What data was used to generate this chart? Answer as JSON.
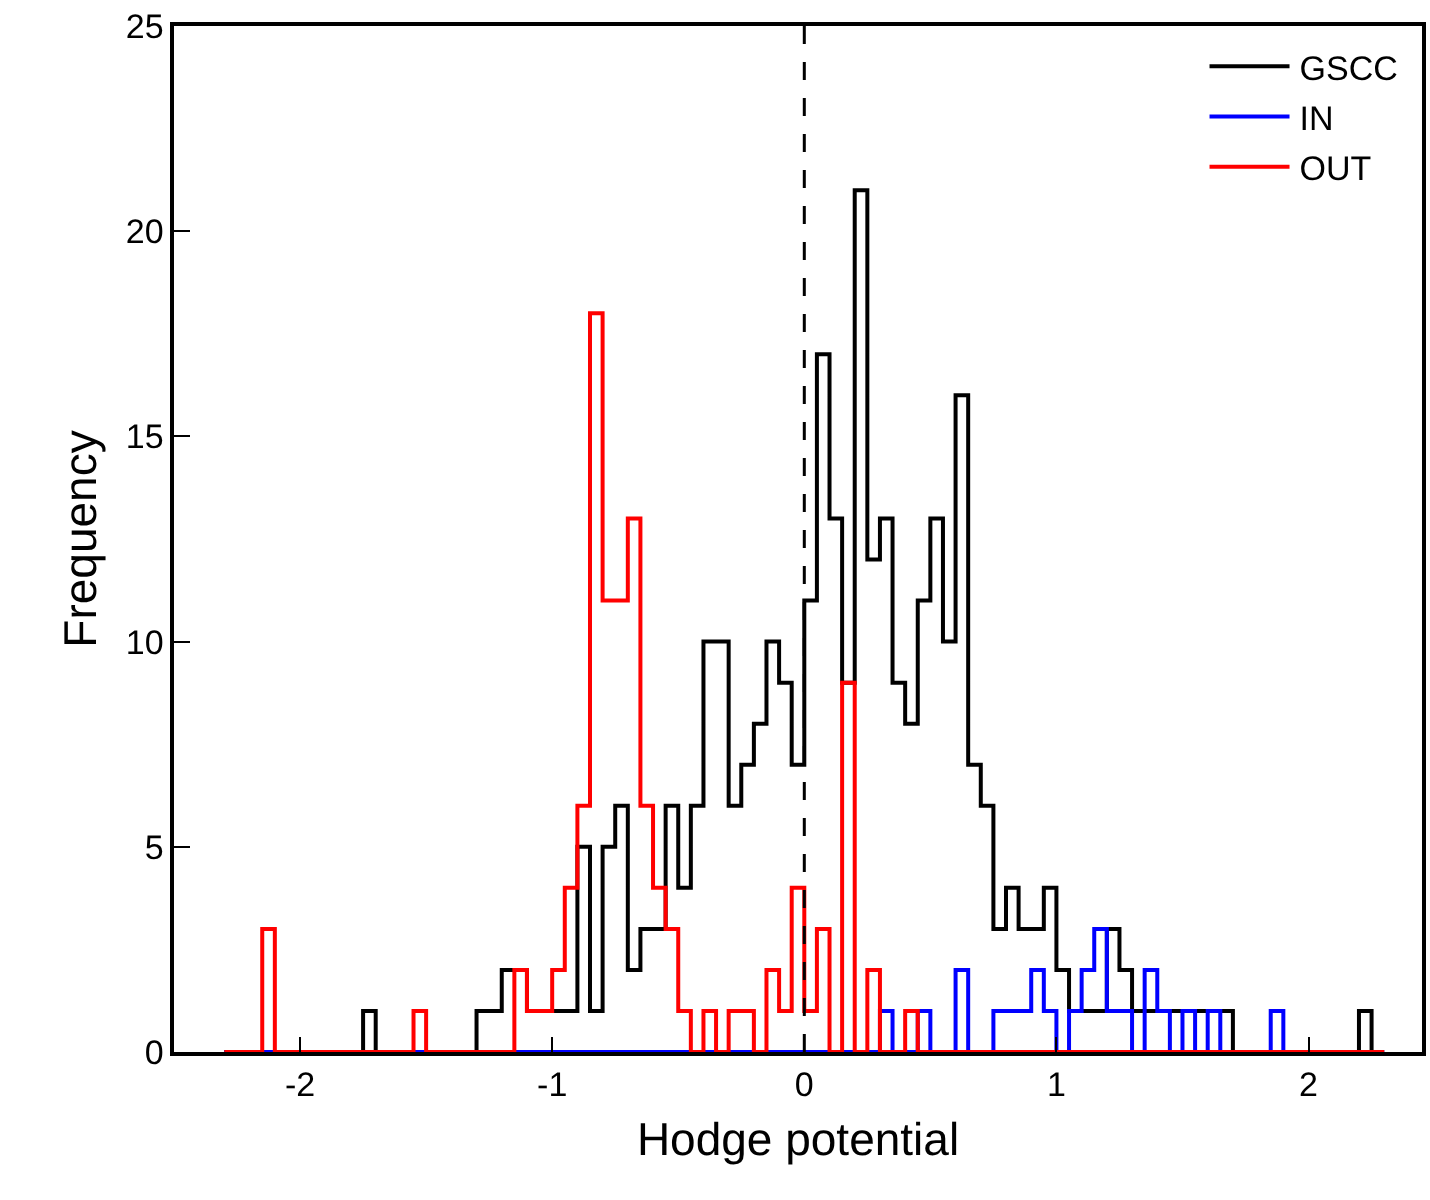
{
  "chart_data": {
    "type": "histogram",
    "xlabel": "Hodge potential",
    "ylabel": "Frequency",
    "bins": [
      -2.3,
      -2.25,
      -2.2,
      -2.15,
      -2.1,
      -2.05,
      -2.0,
      -1.95,
      -1.9,
      -1.85,
      -1.8,
      -1.75,
      -1.7,
      -1.65,
      -1.6,
      -1.55,
      -1.5,
      -1.45,
      -1.4,
      -1.35,
      -1.3,
      -1.25,
      -1.2,
      -1.15,
      -1.1,
      -1.05,
      -1.0,
      -0.95,
      -0.9,
      -0.85,
      -0.8,
      -0.75,
      -0.7,
      -0.65,
      -0.6,
      -0.55,
      -0.5,
      -0.45,
      -0.4,
      -0.35,
      -0.3,
      -0.25,
      -0.2,
      -0.15,
      -0.1,
      -0.05,
      0.0,
      0.05,
      0.1,
      0.15,
      0.2,
      0.25,
      0.3,
      0.35,
      0.4,
      0.45,
      0.5,
      0.55,
      0.6,
      0.65,
      0.7,
      0.75,
      0.8,
      0.85,
      0.9,
      0.95,
      1.0,
      1.05,
      1.1,
      1.15,
      1.2,
      1.25,
      1.3,
      1.35,
      1.4,
      1.45,
      1.5,
      1.55,
      1.6,
      1.65,
      1.7,
      1.75,
      1.8,
      1.85,
      1.9,
      1.95,
      2.0,
      2.05,
      2.1,
      2.15,
      2.2,
      2.25,
      2.3
    ],
    "series": [
      {
        "name": "GSCC",
        "color": "#000000",
        "values": [
          0,
          0,
          0,
          0,
          0,
          0,
          0,
          0,
          0,
          0,
          0,
          1,
          0,
          0,
          0,
          0,
          0,
          0,
          0,
          0,
          1,
          1,
          2,
          2,
          1,
          1,
          1,
          1,
          5,
          1,
          5,
          6,
          2,
          3,
          3,
          6,
          4,
          6,
          10,
          10,
          6,
          7,
          8,
          10,
          9,
          7,
          11,
          17,
          13,
          9,
          21,
          12,
          13,
          9,
          8,
          11,
          13,
          10,
          16,
          7,
          6,
          3,
          4,
          3,
          3,
          4,
          2,
          1,
          1,
          1,
          3,
          2,
          1,
          1,
          1,
          1,
          1,
          1,
          1,
          1,
          0,
          0,
          0,
          0,
          0,
          0,
          0,
          0,
          0,
          0,
          1,
          0
        ]
      },
      {
        "name": "IN",
        "color": "#0000ff",
        "values": [
          0,
          0,
          0,
          0,
          0,
          0,
          0,
          0,
          0,
          0,
          0,
          0,
          0,
          0,
          0,
          0,
          0,
          0,
          0,
          0,
          0,
          0,
          0,
          0,
          0,
          0,
          0,
          0,
          0,
          0,
          0,
          0,
          0,
          0,
          0,
          0,
          0,
          0,
          0,
          0,
          0,
          0,
          0,
          0,
          0,
          0,
          0,
          0,
          0,
          0,
          0,
          0,
          1,
          0,
          0,
          1,
          0,
          0,
          2,
          0,
          0,
          1,
          1,
          1,
          2,
          1,
          0,
          1,
          2,
          3,
          1,
          1,
          0,
          2,
          1,
          0,
          1,
          0,
          1,
          0,
          0,
          0,
          0,
          1,
          0,
          0,
          0,
          0,
          0,
          0,
          0,
          0
        ]
      },
      {
        "name": "OUT",
        "color": "#ff0000",
        "values": [
          0,
          0,
          0,
          3,
          0,
          0,
          0,
          0,
          0,
          0,
          0,
          0,
          0,
          0,
          0,
          1,
          0,
          0,
          0,
          0,
          0,
          0,
          0,
          2,
          1,
          1,
          2,
          4,
          6,
          18,
          11,
          11,
          13,
          6,
          4,
          3,
          1,
          0,
          1,
          0,
          1,
          1,
          0,
          2,
          1,
          4,
          1,
          3,
          0,
          9,
          0,
          2,
          0,
          0,
          1,
          0,
          0,
          0,
          0,
          0,
          0,
          0,
          0,
          0,
          0,
          0,
          0,
          0,
          0,
          0,
          0,
          0,
          0,
          0,
          0,
          0,
          0,
          0,
          0,
          0,
          0,
          0,
          0,
          0,
          0,
          0,
          0,
          0,
          0,
          0,
          0,
          0
        ]
      }
    ],
    "xlim": [
      -2.5,
      2.45
    ],
    "xticks": [
      -2,
      -1,
      0,
      1,
      2
    ],
    "ylim": [
      0,
      25
    ],
    "yticks": [
      0,
      5,
      10,
      15,
      20,
      25
    ],
    "ref_lines": [
      {
        "axis": "x",
        "value": 0,
        "color": "#000000",
        "line_style": "dashed"
      }
    ],
    "grid": false,
    "legend": "top right"
  }
}
